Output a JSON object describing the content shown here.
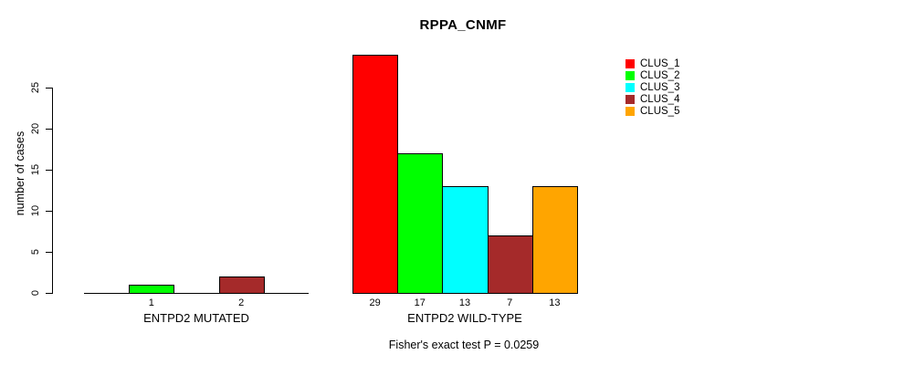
{
  "chart_data": {
    "type": "bar",
    "title": "RPPA_CNMF",
    "ylabel": "number of cases",
    "ylim": [
      0,
      29
    ],
    "yticks": [
      0,
      5,
      10,
      15,
      20,
      25
    ],
    "grid": false,
    "legend_position": "right",
    "clusters": [
      {
        "name": "CLUS_1",
        "color": "#ff0000"
      },
      {
        "name": "CLUS_2",
        "color": "#00ff00"
      },
      {
        "name": "CLUS_3",
        "color": "#00ffff"
      },
      {
        "name": "CLUS_4",
        "color": "#a52a2a"
      },
      {
        "name": "CLUS_5",
        "color": "#ffa500"
      }
    ],
    "groups": [
      {
        "label": "ENTPD2 MUTATED",
        "values": [
          0,
          1,
          0,
          2,
          0
        ]
      },
      {
        "label": "ENTPD2 WILD-TYPE",
        "values": [
          29,
          17,
          13,
          7,
          13
        ]
      }
    ],
    "footnote": "Fisher's exact test P = 0.0259"
  }
}
